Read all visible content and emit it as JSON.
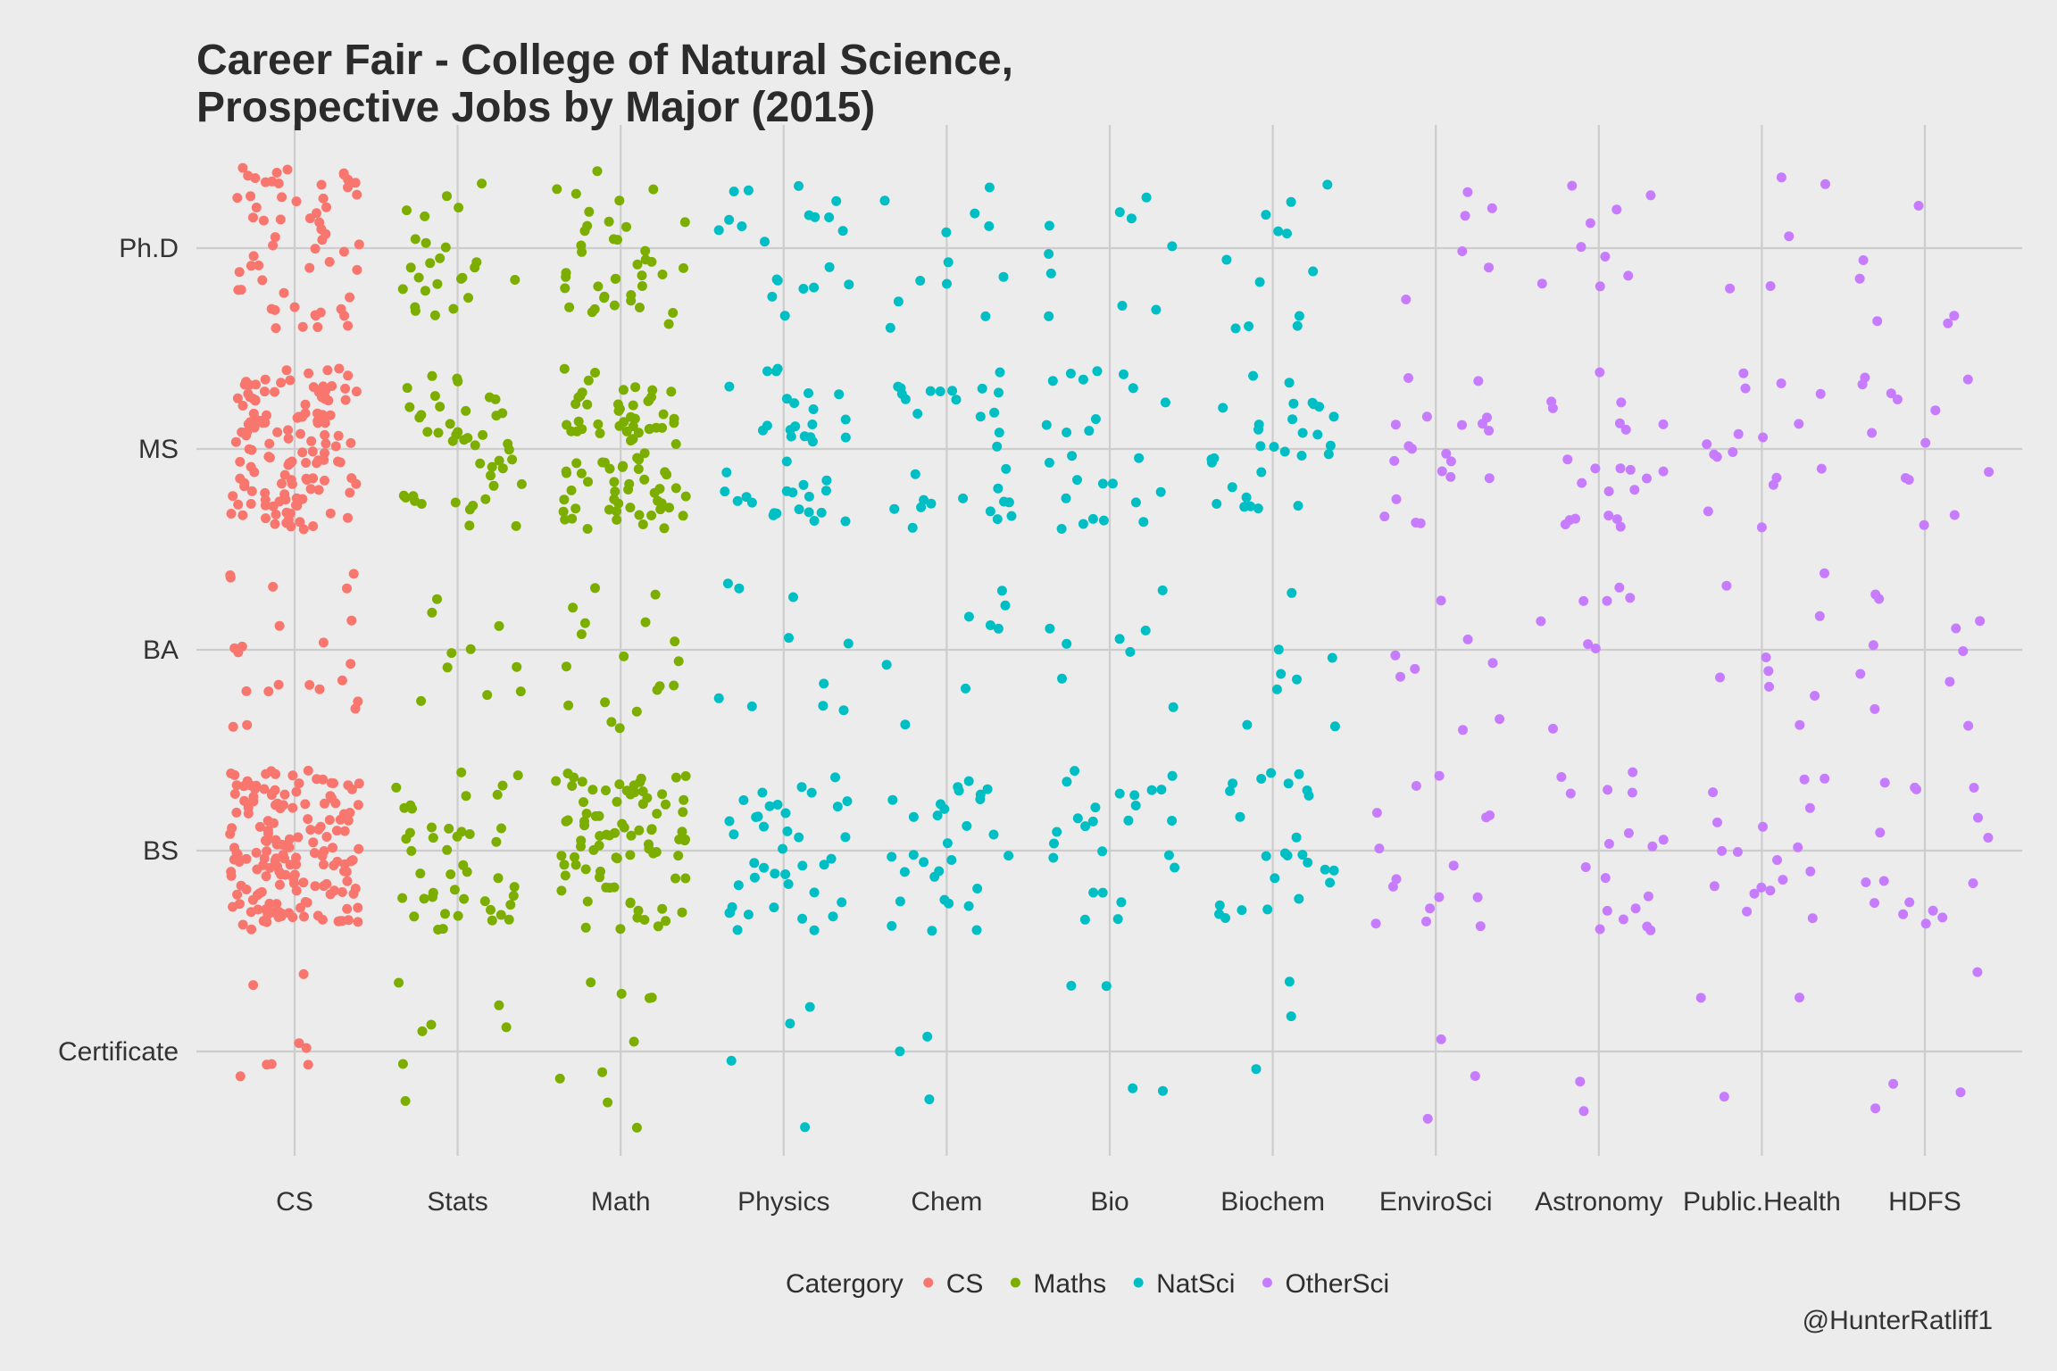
{
  "chart_data": {
    "type": "scatter",
    "title": [
      "Career Fair - College of Natural Science,",
      "Prospective Jobs by Major (2015)"
    ],
    "categories_x": [
      "CS",
      "Stats",
      "Math",
      "Physics",
      "Chem",
      "Bio",
      "Biochem",
      "EnviroSci",
      "Astronomy",
      "Public.Health",
      "HDFS"
    ],
    "categories_y": [
      "Certificate",
      "BS",
      "BA",
      "MS",
      "Ph.D"
    ],
    "counts": {
      "CS": {
        "Certificate": 8,
        "BS": 170,
        "BA": 22,
        "MS": 140,
        "Ph.D": 60
      },
      "Stats": {
        "Certificate": 7,
        "BS": 45,
        "BA": 10,
        "MS": 45,
        "Ph.D": 25
      },
      "Math": {
        "Certificate": 9,
        "BS": 85,
        "BA": 18,
        "MS": 90,
        "Ph.D": 40
      },
      "Physics": {
        "Certificate": 4,
        "BS": 40,
        "BA": 10,
        "MS": 40,
        "Ph.D": 20
      },
      "Chem": {
        "Certificate": 3,
        "BS": 30,
        "BA": 8,
        "MS": 30,
        "Ph.D": 12
      },
      "Bio": {
        "Certificate": 4,
        "BS": 25,
        "BA": 8,
        "MS": 25,
        "Ph.D": 10
      },
      "Biochem": {
        "Certificate": 3,
        "BS": 25,
        "BA": 8,
        "MS": 30,
        "Ph.D": 12
      },
      "EnviroSci": {
        "Certificate": 3,
        "BS": 15,
        "BA": 8,
        "MS": 20,
        "Ph.D": 6
      },
      "Astronomy": {
        "Certificate": 2,
        "BS": 18,
        "BA": 8,
        "MS": 22,
        "Ph.D": 9
      },
      "Public.Health": {
        "Certificate": 3,
        "BS": 18,
        "BA": 9,
        "MS": 16,
        "Ph.D": 5
      },
      "HDFS": {
        "Certificate": 4,
        "BS": 16,
        "BA": 10,
        "MS": 13,
        "Ph.D": 6
      }
    },
    "legend": {
      "title": "Catergory",
      "position": "bottom",
      "entries": [
        {
          "name": "CS",
          "color": "#f8766d",
          "majors": [
            "CS"
          ]
        },
        {
          "name": "Maths",
          "color": "#7cae00",
          "majors": [
            "Stats",
            "Math"
          ]
        },
        {
          "name": "NatSci",
          "color": "#00bfc4",
          "majors": [
            "Physics",
            "Chem",
            "Bio",
            "Biochem"
          ]
        },
        {
          "name": "OtherSci",
          "color": "#c77cff",
          "majors": [
            "EnviroSci",
            "Astronomy",
            "Public.Health",
            "HDFS"
          ]
        }
      ]
    },
    "jitter": {
      "x": 0.4,
      "y": 0.4
    },
    "grid": true,
    "background": "#ececec"
  },
  "caption": "@HunterRatliff1"
}
